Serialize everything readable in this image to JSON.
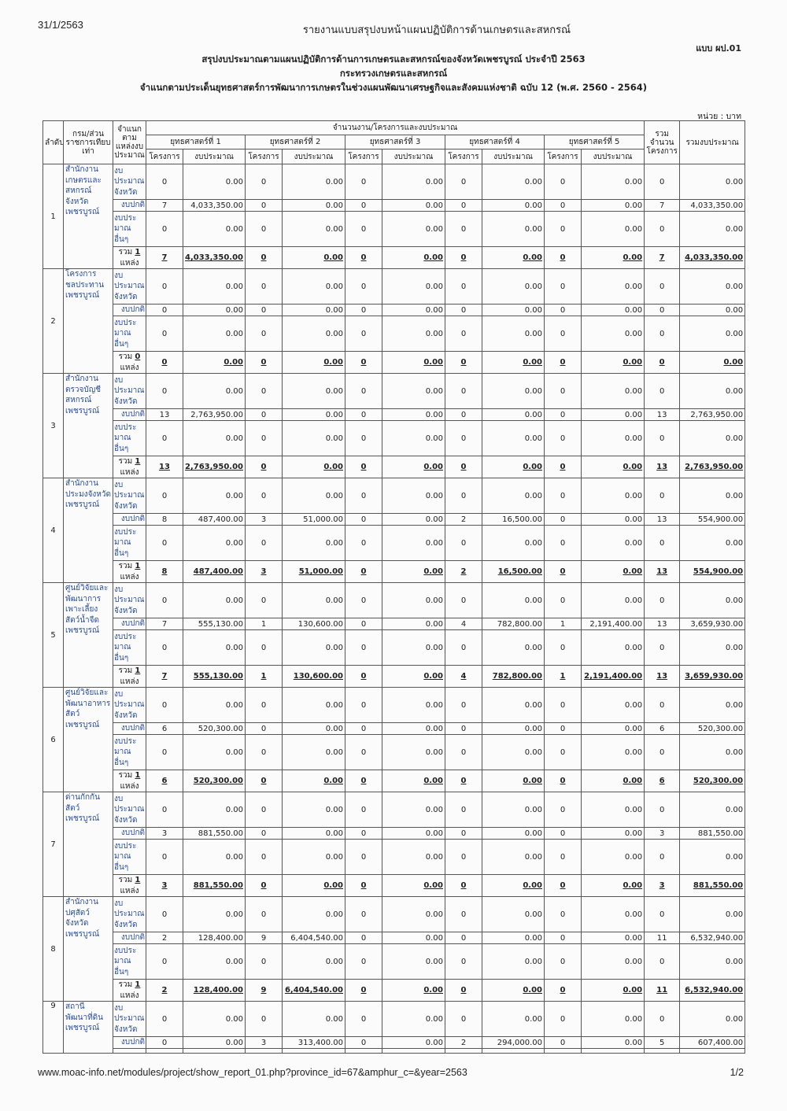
{
  "header": {
    "date": "31/1/2563",
    "report_title": "รายงานแบบสรุปงบหน้าแผนปฏิบัติการด้านเกษตรและสหกรณ์",
    "form_code": "แบบ ผป.01",
    "title_1": "สรุปงบประมาณตามแผนปฏิบัติการด้านการเกษตรและสหกรณ์ของจังหวัดเพชรบูรณ์  ประจำปี 2563",
    "title_2": "กระทรวงเกษตรและสหกรณ์",
    "title_3": "จำแนกตามประเด็นยุทธศาสตร์การพัฒนาการเกษตรในช่วงแผนพัฒนาเศรษฐกิจและสังคมแห่งชาติ ฉบับ 12 (พ.ศ. 2560 - 2564)",
    "unit": "หน่วย : บาท"
  },
  "table": {
    "col_index": "ลำดับ",
    "col_agency": "กรม/ส่วนราชการเทียบเท่า",
    "col_source": "จำแนกตามแหล่งงบประมาณ",
    "col_group": "จำนวนงาน/โครงการและงบประมาณ",
    "strategies": [
      "ยุทธศาสตร์ที่ 1",
      "ยุทธศาสตร์ที่ 2",
      "ยุทธศาสตร์ที่ 3",
      "ยุทธศาสตร์ที่ 4",
      "ยุทธศาสตร์ที่ 5"
    ],
    "sub_projects": "โครงการ",
    "sub_budget": "งบประมาณ",
    "col_total_count": "รวมจำนวนโครงการ",
    "col_total_budget": "รวมงบประมาณ",
    "source_labels": [
      "งบประมาณจังหวัด",
      "งบปกติ",
      "งบประมาณอื่นๆ"
    ],
    "sum_prefix": "รวม",
    "sum_suffix": "แหล่ง",
    "agencies": [
      {
        "index": "1",
        "name": "สำนักงานเกษตรและสหกรณ์จังหวัดเพชรบูรณ์",
        "sources": "1",
        "rows": [
          [
            "0",
            "0.00",
            "0",
            "0.00",
            "0",
            "0.00",
            "0",
            "0.00",
            "0",
            "0.00",
            "0",
            "0.00"
          ],
          [
            "7",
            "4,033,350.00",
            "0",
            "0.00",
            "0",
            "0.00",
            "0",
            "0.00",
            "0",
            "0.00",
            "7",
            "4,033,350.00"
          ],
          [
            "0",
            "0.00",
            "0",
            "0.00",
            "0",
            "0.00",
            "0",
            "0.00",
            "0",
            "0.00",
            "0",
            "0.00"
          ],
          [
            "7",
            "4,033,350.00",
            "0",
            "0.00",
            "0",
            "0.00",
            "0",
            "0.00",
            "0",
            "0.00",
            "7",
            "4,033,350.00"
          ]
        ]
      },
      {
        "index": "2",
        "name": "โครงการชลประทานเพชรบูรณ์",
        "sources": "0",
        "rows": [
          [
            "0",
            "0.00",
            "0",
            "0.00",
            "0",
            "0.00",
            "0",
            "0.00",
            "0",
            "0.00",
            "0",
            "0.00"
          ],
          [
            "0",
            "0.00",
            "0",
            "0.00",
            "0",
            "0.00",
            "0",
            "0.00",
            "0",
            "0.00",
            "0",
            "0.00"
          ],
          [
            "0",
            "0.00",
            "0",
            "0.00",
            "0",
            "0.00",
            "0",
            "0.00",
            "0",
            "0.00",
            "0",
            "0.00"
          ],
          [
            "0",
            "0.00",
            "0",
            "0.00",
            "0",
            "0.00",
            "0",
            "0.00",
            "0",
            "0.00",
            "0",
            "0.00"
          ]
        ]
      },
      {
        "index": "3",
        "name": "สำนักงานตรวจบัญชีสหกรณ์เพชรบูรณ์",
        "sources": "1",
        "rows": [
          [
            "0",
            "0.00",
            "0",
            "0.00",
            "0",
            "0.00",
            "0",
            "0.00",
            "0",
            "0.00",
            "0",
            "0.00"
          ],
          [
            "13",
            "2,763,950.00",
            "0",
            "0.00",
            "0",
            "0.00",
            "0",
            "0.00",
            "0",
            "0.00",
            "13",
            "2,763,950.00"
          ],
          [
            "0",
            "0.00",
            "0",
            "0.00",
            "0",
            "0.00",
            "0",
            "0.00",
            "0",
            "0.00",
            "0",
            "0.00"
          ],
          [
            "13",
            "2,763,950.00",
            "0",
            "0.00",
            "0",
            "0.00",
            "0",
            "0.00",
            "0",
            "0.00",
            "13",
            "2,763,950.00"
          ]
        ]
      },
      {
        "index": "4",
        "name": "สำนักงานประมงจังหวัดเพชรบูรณ์",
        "sources": "1",
        "rows": [
          [
            "0",
            "0.00",
            "0",
            "0.00",
            "0",
            "0.00",
            "0",
            "0.00",
            "0",
            "0.00",
            "0",
            "0.00"
          ],
          [
            "8",
            "487,400.00",
            "3",
            "51,000.00",
            "0",
            "0.00",
            "2",
            "16,500.00",
            "0",
            "0.00",
            "13",
            "554,900.00"
          ],
          [
            "0",
            "0.00",
            "0",
            "0.00",
            "0",
            "0.00",
            "0",
            "0.00",
            "0",
            "0.00",
            "0",
            "0.00"
          ],
          [
            "8",
            "487,400.00",
            "3",
            "51,000.00",
            "0",
            "0.00",
            "2",
            "16,500.00",
            "0",
            "0.00",
            "13",
            "554,900.00"
          ]
        ]
      },
      {
        "index": "5",
        "name": "ศูนย์วิจัยและพัฒนาการเพาะเลี้ยงสัตว์น้ำจืดเพชรบูรณ์",
        "sources": "1",
        "rows": [
          [
            "0",
            "0.00",
            "0",
            "0.00",
            "0",
            "0.00",
            "0",
            "0.00",
            "0",
            "0.00",
            "0",
            "0.00"
          ],
          [
            "7",
            "555,130.00",
            "1",
            "130,600.00",
            "0",
            "0.00",
            "4",
            "782,800.00",
            "1",
            "2,191,400.00",
            "13",
            "3,659,930.00"
          ],
          [
            "0",
            "0.00",
            "0",
            "0.00",
            "0",
            "0.00",
            "0",
            "0.00",
            "0",
            "0.00",
            "0",
            "0.00"
          ],
          [
            "7",
            "555,130.00",
            "1",
            "130,600.00",
            "0",
            "0.00",
            "4",
            "782,800.00",
            "1",
            "2,191,400.00",
            "13",
            "3,659,930.00"
          ]
        ]
      },
      {
        "index": "6",
        "name": "ศูนย์วิจัยและพัฒนาอาหารสัตว์เพชรบูรณ์",
        "sources": "1",
        "rows": [
          [
            "0",
            "0.00",
            "0",
            "0.00",
            "0",
            "0.00",
            "0",
            "0.00",
            "0",
            "0.00",
            "0",
            "0.00"
          ],
          [
            "6",
            "520,300.00",
            "0",
            "0.00",
            "0",
            "0.00",
            "0",
            "0.00",
            "0",
            "0.00",
            "6",
            "520,300.00"
          ],
          [
            "0",
            "0.00",
            "0",
            "0.00",
            "0",
            "0.00",
            "0",
            "0.00",
            "0",
            "0.00",
            "0",
            "0.00"
          ],
          [
            "6",
            "520,300.00",
            "0",
            "0.00",
            "0",
            "0.00",
            "0",
            "0.00",
            "0",
            "0.00",
            "6",
            "520,300.00"
          ]
        ]
      },
      {
        "index": "7",
        "name": "ด่านกักกันสัตว์เพชรบูรณ์",
        "sources": "1",
        "rows": [
          [
            "0",
            "0.00",
            "0",
            "0.00",
            "0",
            "0.00",
            "0",
            "0.00",
            "0",
            "0.00",
            "0",
            "0.00"
          ],
          [
            "3",
            "881,550.00",
            "0",
            "0.00",
            "0",
            "0.00",
            "0",
            "0.00",
            "0",
            "0.00",
            "3",
            "881,550.00"
          ],
          [
            "0",
            "0.00",
            "0",
            "0.00",
            "0",
            "0.00",
            "0",
            "0.00",
            "0",
            "0.00",
            "0",
            "0.00"
          ],
          [
            "3",
            "881,550.00",
            "0",
            "0.00",
            "0",
            "0.00",
            "0",
            "0.00",
            "0",
            "0.00",
            "3",
            "881,550.00"
          ]
        ]
      },
      {
        "index": "8",
        "name": "สำนักงานปศุสัตว์จังหวัดเพชรบูรณ์",
        "sources": "1",
        "rows": [
          [
            "0",
            "0.00",
            "0",
            "0.00",
            "0",
            "0.00",
            "0",
            "0.00",
            "0",
            "0.00",
            "0",
            "0.00"
          ],
          [
            "2",
            "128,400.00",
            "9",
            "6,404,540.00",
            "0",
            "0.00",
            "0",
            "0.00",
            "0",
            "0.00",
            "11",
            "6,532,940.00"
          ],
          [
            "0",
            "0.00",
            "0",
            "0.00",
            "0",
            "0.00",
            "0",
            "0.00",
            "0",
            "0.00",
            "0",
            "0.00"
          ],
          [
            "2",
            "128,400.00",
            "9",
            "6,404,540.00",
            "0",
            "0.00",
            "0",
            "0.00",
            "0",
            "0.00",
            "11",
            "6,532,940.00"
          ]
        ]
      },
      {
        "index": "9",
        "name": "สถานีพัฒนาที่ดินเพชรบูรณ์",
        "sources": "",
        "rows": [
          [
            "0",
            "0.00",
            "0",
            "0.00",
            "0",
            "0.00",
            "0",
            "0.00",
            "0",
            "0.00",
            "0",
            "0.00"
          ],
          [
            "0",
            "0.00",
            "3",
            "313,400.00",
            "0",
            "0.00",
            "2",
            "294,000.00",
            "0",
            "0.00",
            "5",
            "607,400.00"
          ]
        ]
      }
    ]
  },
  "footer": {
    "url": "www.moac-info.net/modules/project/show_report_01.php?province_id=67&amphur_c=&year=2563",
    "page": "1/2"
  }
}
